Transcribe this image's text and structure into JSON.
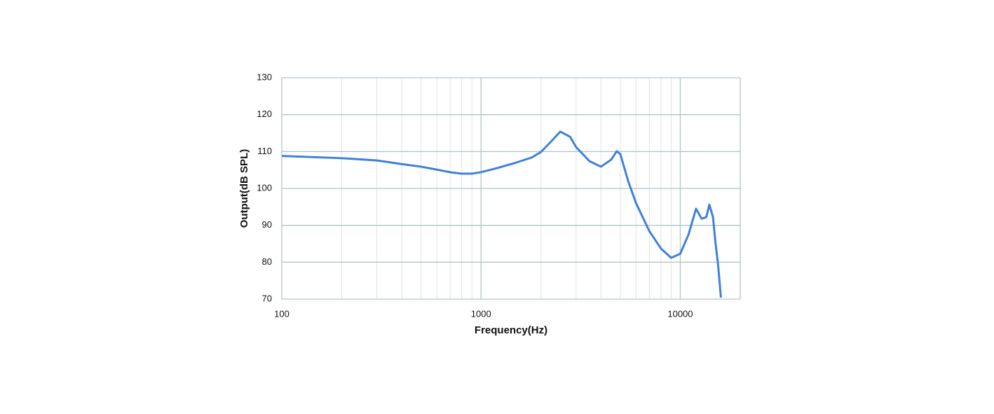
{
  "chart_data": {
    "type": "line",
    "x_label": "Frequency(Hz)",
    "y_label": "Output(dB SPL)",
    "x": [
      100,
      200,
      300,
      400,
      500,
      600,
      700,
      800,
      900,
      1000,
      1200,
      1500,
      1800,
      2000,
      2200,
      2500,
      2800,
      3000,
      3500,
      4000,
      4500,
      4800,
      5000,
      5500,
      6000,
      7000,
      8000,
      9000,
      10000,
      11000,
      12000,
      12800,
      13500,
      14000,
      14600,
      15000,
      15500,
      16000
    ],
    "series": [
      {
        "color": "#3f80db",
        "values": [
          108.8,
          108.2,
          107.6,
          106.6,
          105.9,
          105.1,
          104.4,
          104.0,
          104.0,
          104.4,
          105.5,
          107.0,
          108.4,
          109.9,
          112.2,
          115.4,
          114.0,
          111.2,
          107.4,
          105.9,
          107.8,
          110.1,
          109.3,
          101.7,
          96.0,
          88.4,
          83.7,
          81.2,
          82.3,
          87.5,
          94.5,
          91.8,
          92.2,
          95.6,
          92.2,
          85.6,
          79.0,
          70.4
        ]
      }
    ],
    "xlim": [
      100,
      20000
    ],
    "xscale": "log",
    "xticks": [
      100,
      1000,
      10000
    ],
    "x_minor_grid": [
      200,
      300,
      400,
      500,
      600,
      700,
      800,
      900,
      2000,
      3000,
      4000,
      5000,
      6000,
      7000,
      8000,
      9000
    ],
    "ylim": [
      70,
      130
    ],
    "yticks": [
      70,
      80,
      90,
      100,
      110,
      120,
      130
    ],
    "grid": true,
    "grid_color": "#b4c4c9",
    "minor_grid_color": "#dde4e6"
  }
}
